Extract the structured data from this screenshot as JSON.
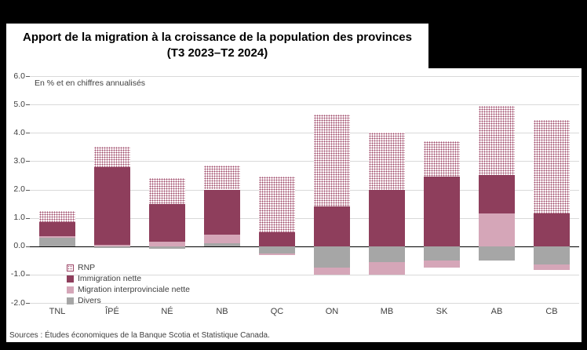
{
  "colors": {
    "background": "#000000",
    "panel": "#ffffff",
    "grid": "#d9d9d9",
    "zero_line": "#000000",
    "text": "#404040"
  },
  "chart_data": {
    "type": "bar",
    "stacked": true,
    "title": "Apport de la migration à la croissance de la population des provinces",
    "subtitle": "(T3 2023–T2 2024)",
    "note": "En % et en chiffres annualisés",
    "source": "Sources : Études économiques de la Banque Scotia et Statistique Canada.",
    "categories": [
      "TNL",
      "ÎPÉ",
      "NÉ",
      "NB",
      "QC",
      "ON",
      "MB",
      "SK",
      "AB",
      "CB"
    ],
    "series": [
      {
        "name": "Divers",
        "key": "divers",
        "color": "#a6a6a6",
        "values": [
          0.3,
          -0.05,
          -0.1,
          0.1,
          -0.25,
          -0.75,
          -0.55,
          -0.5,
          -0.5,
          -0.65
        ]
      },
      {
        "name": "Migration interprovinciale nette",
        "key": "interprovinciale",
        "color": "#d5a6b8",
        "values": [
          0.05,
          0.05,
          0.15,
          0.3,
          -0.05,
          -0.25,
          -0.45,
          -0.25,
          1.15,
          -0.2
        ]
      },
      {
        "name": "Immigration nette",
        "key": "immigration",
        "color": "#8e3e5c",
        "values": [
          0.5,
          2.75,
          1.35,
          1.6,
          0.5,
          1.4,
          2.0,
          2.45,
          1.35,
          1.15
        ]
      },
      {
        "name": "RNP",
        "key": "rnp",
        "color": "#9c4566",
        "pattern": "dots",
        "values": [
          0.4,
          0.7,
          0.9,
          0.85,
          1.95,
          3.25,
          2.0,
          1.25,
          2.45,
          3.3
        ]
      }
    ],
    "ylim": [
      -2.0,
      6.0
    ],
    "yticks": [
      "6.0",
      "5.0",
      "4.0",
      "3.0",
      "2.0",
      "1.0",
      "0.0",
      "-1.0",
      "-2.0"
    ],
    "grid": "horizontal",
    "legend_position": "inside-bottom-left",
    "legend": [
      "RNP",
      "Immigration nette",
      "Migration interprovinciale nette",
      "Divers"
    ]
  }
}
